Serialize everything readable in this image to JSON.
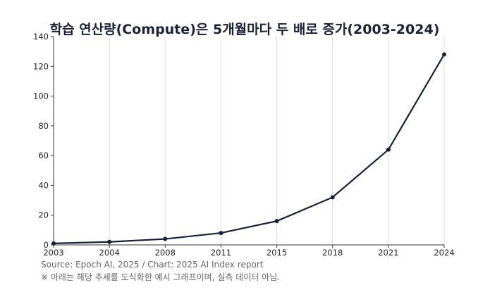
{
  "chart_data": {
    "type": "line",
    "title": "학습 연산량(Compute)은 5개월마다 두 배로 증가(2003-2024)",
    "xlabel": "",
    "ylabel": "",
    "categories": [
      "2003",
      "2004",
      "2008",
      "2011",
      "2015",
      "2018",
      "2021",
      "2024"
    ],
    "series": [
      {
        "values": [
          1,
          2,
          4,
          8,
          16,
          32,
          64,
          128
        ]
      }
    ],
    "ylim": [
      0,
      140
    ],
    "yticks": [
      0,
      20,
      40,
      60,
      80,
      100,
      120,
      140
    ],
    "grid": "vertical",
    "legend": "none",
    "line_color": "#15203b"
  },
  "footer": {
    "source": "Source: Epoch AI, 2025 / Chart: 2025 AI Index report",
    "disclaimer": "※ 아래는 해당 추세를 도식화한 예시 그래프이며, 실측 데이터 아님."
  }
}
